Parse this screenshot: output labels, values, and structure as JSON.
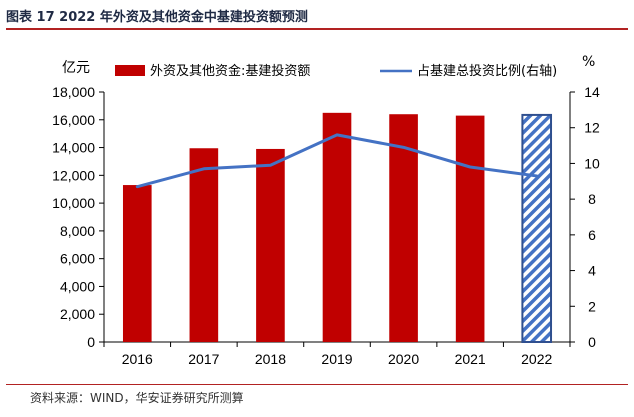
{
  "header": {
    "title": "图表 17 2022 年外资及其他资金中基建投资额预测"
  },
  "footer": {
    "source": "资料来源：WIND，华安证券研究所测算"
  },
  "chart_data": {
    "type": "bar",
    "categories": [
      "2016",
      "2017",
      "2018",
      "2019",
      "2020",
      "2021",
      "2022"
    ],
    "series": [
      {
        "name": "外资及其他资金:基建投资额",
        "type": "bar",
        "axis": "left",
        "color": "#c00000",
        "values": [
          11300,
          13950,
          13900,
          16500,
          16400,
          16300,
          16350
        ],
        "forecast_index": 6
      },
      {
        "name": "占基建总投资比例(右轴)",
        "type": "line",
        "axis": "right",
        "color": "#4472c4",
        "values": [
          8.7,
          9.7,
          9.9,
          11.6,
          10.9,
          9.8,
          9.3
        ]
      }
    ],
    "y_left": {
      "unit": "亿元",
      "min": 0,
      "max": 18000,
      "step": 2000,
      "ticks": [
        "0",
        "2,000",
        "4,000",
        "6,000",
        "8,000",
        "10,000",
        "12,000",
        "14,000",
        "16,000",
        "18,000"
      ]
    },
    "y_right": {
      "unit": "%",
      "min": 0,
      "max": 14,
      "step": 2,
      "ticks": [
        "0",
        "2",
        "4",
        "6",
        "8",
        "10",
        "12",
        "14"
      ]
    },
    "grid": false,
    "legend": "top"
  }
}
